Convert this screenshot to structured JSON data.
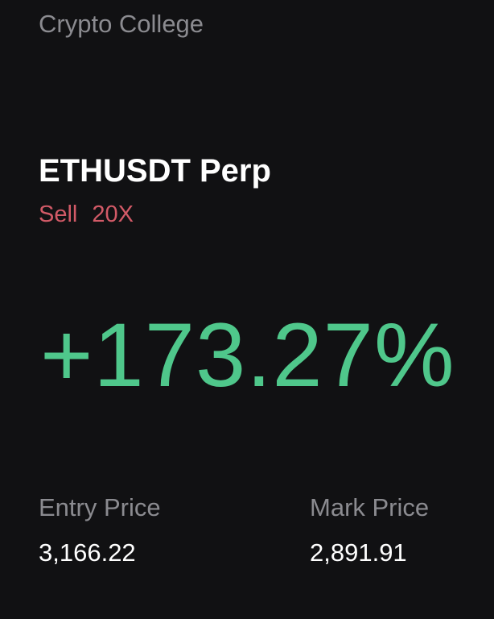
{
  "brand": "Crypto College",
  "position": {
    "symbol": "ETHUSDT Perp",
    "side": "Sell",
    "leverage": "20X",
    "pnl_percent": "+173.27%"
  },
  "prices": {
    "entry_label": "Entry Price",
    "entry_value": "3,166.22",
    "mark_label": "Mark Price",
    "mark_value": "2,891.91"
  },
  "colors": {
    "background": "#111113",
    "profit": "#4fc78b",
    "sell": "#d25a67",
    "muted": "#8b8b90"
  }
}
